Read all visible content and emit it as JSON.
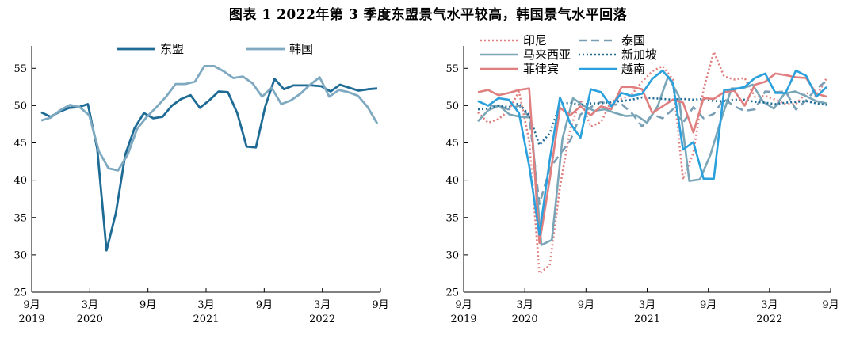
{
  "title": "图表 1 2022年第 3 季度东盟景气水平较高，韩国景气水平回落",
  "chart_data": [
    {
      "type": "line",
      "x_labels": [
        "9月\n2019",
        "3月\n2020",
        "9月",
        "3月\n2021",
        "9月",
        "3月\n2022",
        "9月"
      ],
      "ylim": [
        25,
        58
      ],
      "yticks": [
        25,
        30,
        35,
        40,
        45,
        50,
        55
      ],
      "legend": [
        "东盟",
        "韩国"
      ],
      "series": [
        {
          "name": "东盟",
          "color": "#1e6b96",
          "dash": "solid",
          "values": [
            49.1,
            48.5,
            49.2,
            49.7,
            49.8,
            50.2,
            44.2,
            30.6,
            35.6,
            43.4,
            47.0,
            49.0,
            48.3,
            48.5,
            50.0,
            50.9,
            51.4,
            49.7,
            50.7,
            51.9,
            51.8,
            49.0,
            44.5,
            44.4,
            49.9,
            53.6,
            52.2,
            52.7,
            52.7,
            52.7,
            52.6,
            51.9,
            52.8,
            52.4,
            52.0,
            52.2,
            52.3
          ]
        },
        {
          "name": "韩国",
          "color": "#7ea9c0",
          "dash": "solid",
          "values": [
            48.0,
            48.4,
            49.4,
            50.1,
            49.8,
            48.7,
            43.9,
            41.6,
            41.3,
            43.4,
            46.9,
            48.5,
            49.8,
            51.2,
            52.9,
            52.9,
            53.2,
            55.3,
            55.3,
            54.6,
            53.7,
            53.9,
            53.0,
            51.2,
            52.4,
            50.2,
            50.7,
            51.6,
            52.8,
            53.8,
            51.2,
            52.1,
            51.8,
            51.3,
            49.8,
            47.6
          ]
        }
      ]
    },
    {
      "type": "line",
      "x_labels": [
        "9月\n2019",
        "3月\n2020",
        "9月",
        "3月\n2021",
        "9月",
        "3月\n2022",
        "9月"
      ],
      "ylim": [
        25,
        58
      ],
      "yticks": [
        25,
        30,
        35,
        40,
        45,
        50,
        55
      ],
      "legend": [
        "印尼",
        "泰国",
        "马来西亚",
        "新加坡",
        "菲律宾",
        "越南"
      ],
      "series": [
        {
          "name": "印尼",
          "color": "#e07f7f",
          "dash": "2,3",
          "values": [
            49.1,
            47.7,
            48.2,
            49.3,
            51.9,
            45.3,
            27.5,
            28.6,
            39.1,
            46.9,
            50.8,
            47.2,
            47.8,
            50.6,
            50.9,
            51.5,
            53.2,
            54.6,
            55.3,
            53.5,
            40.1,
            43.7,
            52.2,
            57.2,
            53.9,
            53.5,
            53.7,
            51.2,
            51.3,
            50.8,
            50.2,
            50.2,
            51.7,
            51.3,
            53.7
          ]
        },
        {
          "name": "泰国",
          "color": "#7a9fb5",
          "dash": "10,6",
          "values": [
            50.6,
            50.0,
            50.0,
            49.5,
            50.0,
            48.5,
            36.8,
            41.6,
            43.5,
            45.3,
            48.8,
            49.8,
            50.5,
            50.1,
            50.2,
            49.0,
            47.2,
            48.8,
            48.3,
            49.5,
            47.7,
            49.8,
            48.3,
            48.9,
            50.9,
            49.9,
            49.3,
            49.5,
            51.9,
            51.8,
            51.9,
            49.5,
            50.7,
            52.3,
            53.3
          ]
        },
        {
          "name": "马来西亚",
          "color": "#7aa6b8",
          "dash": "solid",
          "values": [
            47.9,
            49.4,
            50.0,
            48.8,
            48.5,
            48.4,
            31.3,
            32.0,
            45.6,
            51.0,
            50.0,
            49.3,
            49.5,
            49.0,
            48.6,
            48.7,
            47.7,
            49.9,
            53.9,
            51.3,
            39.9,
            40.1,
            43.4,
            48.1,
            52.3,
            52.3,
            52.8,
            50.5,
            49.6,
            51.6,
            51.9,
            51.3,
            50.6,
            50.3
          ]
        },
        {
          "name": "新加坡",
          "color": "#1e6b96",
          "dash": "2,3",
          "values": [
            49.5,
            49.6,
            50.0,
            49.8,
            50.3,
            48.7,
            44.7,
            46.3,
            50.2,
            50.4,
            50.1,
            50.3,
            50.3,
            50.5,
            50.6,
            50.8,
            51.1,
            51.0,
            50.9,
            50.8,
            50.9,
            50.8,
            50.9,
            50.6,
            50.6,
            50.8,
            50.8,
            50.5,
            50.4,
            50.2,
            50.4,
            50.5,
            50.6,
            50.3,
            50.1
          ]
        },
        {
          "name": "菲律宾",
          "color": "#e07f7f",
          "dash": "solid",
          "values": [
            51.8,
            52.1,
            51.4,
            51.7,
            52.1,
            52.3,
            31.6,
            40.1,
            49.7,
            48.7,
            49.9,
            48.7,
            49.9,
            49.5,
            52.5,
            52.5,
            52.2,
            49.0,
            49.9,
            50.8,
            50.4,
            46.4,
            51.0,
            50.9,
            51.8,
            52.0,
            50.0,
            52.8,
            53.2,
            54.3,
            54.1,
            53.8,
            53.7,
            51.6,
            51.2
          ]
        },
        {
          "name": "越南",
          "color": "#2aa0dc",
          "dash": "solid",
          "values": [
            50.6,
            50.0,
            51.0,
            50.8,
            49.0,
            41.9,
            32.7,
            42.7,
            51.1,
            47.6,
            45.7,
            52.2,
            51.8,
            49.9,
            51.7,
            51.3,
            51.6,
            53.6,
            54.7,
            53.1,
            44.1,
            45.1,
            40.2,
            40.2,
            52.1,
            52.2,
            52.5,
            53.7,
            54.3,
            51.7,
            51.7,
            54.7,
            54.0,
            51.2,
            52.5
          ]
        }
      ]
    }
  ]
}
